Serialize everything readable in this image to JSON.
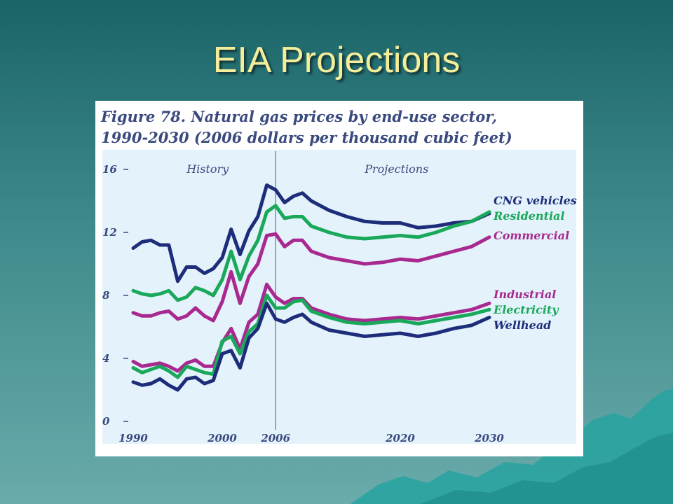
{
  "slide": {
    "title": "EIA Projections"
  },
  "colors": {
    "title_text": "#f4ee9a",
    "plot_background": "#e4f3fb",
    "chart_text": "#3b4a7e",
    "mountains": "#2aa3a0"
  },
  "chart_data": {
    "type": "line",
    "title_line1": "Figure 78. Natural gas prices by end-use sector,",
    "title_line2": "1990-2030 (2006 dollars per thousand cubic feet)",
    "xlabel": "",
    "ylabel": "",
    "xlim": [
      1990,
      2030
    ],
    "ylim": [
      0,
      16
    ],
    "x_ticks": [
      1990,
      2000,
      2006,
      2020,
      2030
    ],
    "y_ticks": [
      0,
      4,
      8,
      12,
      16
    ],
    "divider_year": 2006,
    "regions": {
      "history": "History",
      "projections": "Projections"
    },
    "grid": false,
    "legend_placement": "labels at right end of each line",
    "series": [
      {
        "name": "CNG vehicles",
        "color": "#1e2d7a",
        "points": [
          [
            1990,
            11.0
          ],
          [
            1991,
            11.4
          ],
          [
            1992,
            11.5
          ],
          [
            1993,
            11.2
          ],
          [
            1994,
            11.2
          ],
          [
            1995,
            8.9
          ],
          [
            1996,
            9.8
          ],
          [
            1997,
            9.8
          ],
          [
            1998,
            9.4
          ],
          [
            1999,
            9.7
          ],
          [
            2000,
            10.4
          ],
          [
            2001,
            12.2
          ],
          [
            2002,
            10.6
          ],
          [
            2003,
            12.1
          ],
          [
            2004,
            13.0
          ],
          [
            2005,
            15.0
          ],
          [
            2006,
            14.7
          ],
          [
            2007,
            13.9
          ],
          [
            2008,
            14.3
          ],
          [
            2009,
            14.5
          ],
          [
            2010,
            14.0
          ],
          [
            2012,
            13.4
          ],
          [
            2014,
            13.0
          ],
          [
            2016,
            12.7
          ],
          [
            2018,
            12.6
          ],
          [
            2020,
            12.6
          ],
          [
            2022,
            12.3
          ],
          [
            2024,
            12.4
          ],
          [
            2026,
            12.6
          ],
          [
            2028,
            12.7
          ],
          [
            2030,
            13.2
          ]
        ]
      },
      {
        "name": "Residential",
        "color": "#1aa85a",
        "points": [
          [
            1990,
            8.3
          ],
          [
            1991,
            8.1
          ],
          [
            1992,
            8.0
          ],
          [
            1993,
            8.1
          ],
          [
            1994,
            8.3
          ],
          [
            1995,
            7.7
          ],
          [
            1996,
            7.9
          ],
          [
            1997,
            8.5
          ],
          [
            1998,
            8.3
          ],
          [
            1999,
            8.0
          ],
          [
            2000,
            9.0
          ],
          [
            2001,
            10.8
          ],
          [
            2002,
            9.0
          ],
          [
            2003,
            10.5
          ],
          [
            2004,
            11.5
          ],
          [
            2005,
            13.3
          ],
          [
            2006,
            13.7
          ],
          [
            2007,
            12.9
          ],
          [
            2008,
            13.0
          ],
          [
            2009,
            13.0
          ],
          [
            2010,
            12.4
          ],
          [
            2012,
            12.0
          ],
          [
            2014,
            11.7
          ],
          [
            2016,
            11.6
          ],
          [
            2018,
            11.7
          ],
          [
            2020,
            11.8
          ],
          [
            2022,
            11.7
          ],
          [
            2024,
            12.0
          ],
          [
            2026,
            12.4
          ],
          [
            2028,
            12.7
          ],
          [
            2030,
            13.3
          ]
        ]
      },
      {
        "name": "Commercial",
        "color": "#a8298f",
        "points": [
          [
            1990,
            6.9
          ],
          [
            1991,
            6.7
          ],
          [
            1992,
            6.7
          ],
          [
            1993,
            6.9
          ],
          [
            1994,
            7.0
          ],
          [
            1995,
            6.5
          ],
          [
            1996,
            6.7
          ],
          [
            1997,
            7.2
          ],
          [
            1998,
            6.7
          ],
          [
            1999,
            6.4
          ],
          [
            2000,
            7.6
          ],
          [
            2001,
            9.5
          ],
          [
            2002,
            7.5
          ],
          [
            2003,
            9.2
          ],
          [
            2004,
            10.0
          ],
          [
            2005,
            11.8
          ],
          [
            2006,
            11.9
          ],
          [
            2007,
            11.1
          ],
          [
            2008,
            11.5
          ],
          [
            2009,
            11.5
          ],
          [
            2010,
            10.8
          ],
          [
            2012,
            10.4
          ],
          [
            2014,
            10.2
          ],
          [
            2016,
            10.0
          ],
          [
            2018,
            10.1
          ],
          [
            2020,
            10.3
          ],
          [
            2022,
            10.2
          ],
          [
            2024,
            10.5
          ],
          [
            2026,
            10.8
          ],
          [
            2028,
            11.1
          ],
          [
            2030,
            11.7
          ]
        ]
      },
      {
        "name": "Industrial",
        "color": "#a8298f",
        "points": [
          [
            1990,
            3.8
          ],
          [
            1991,
            3.5
          ],
          [
            1992,
            3.6
          ],
          [
            1993,
            3.7
          ],
          [
            1994,
            3.5
          ],
          [
            1995,
            3.2
          ],
          [
            1996,
            3.7
          ],
          [
            1997,
            3.9
          ],
          [
            1998,
            3.5
          ],
          [
            1999,
            3.5
          ],
          [
            2000,
            5.0
          ],
          [
            2001,
            5.9
          ],
          [
            2002,
            4.6
          ],
          [
            2003,
            6.3
          ],
          [
            2004,
            6.8
          ],
          [
            2005,
            8.7
          ],
          [
            2006,
            7.9
          ],
          [
            2007,
            7.5
          ],
          [
            2008,
            7.8
          ],
          [
            2009,
            7.8
          ],
          [
            2010,
            7.2
          ],
          [
            2012,
            6.8
          ],
          [
            2014,
            6.5
          ],
          [
            2016,
            6.4
          ],
          [
            2018,
            6.5
          ],
          [
            2020,
            6.6
          ],
          [
            2022,
            6.5
          ],
          [
            2024,
            6.7
          ],
          [
            2026,
            6.9
          ],
          [
            2028,
            7.1
          ],
          [
            2030,
            7.5
          ]
        ]
      },
      {
        "name": "Electricity",
        "color": "#1aa85a",
        "points": [
          [
            1990,
            3.4
          ],
          [
            1991,
            3.1
          ],
          [
            1992,
            3.3
          ],
          [
            1993,
            3.5
          ],
          [
            1994,
            3.2
          ],
          [
            1995,
            2.8
          ],
          [
            1996,
            3.5
          ],
          [
            1997,
            3.3
          ],
          [
            1998,
            3.1
          ],
          [
            1999,
            3.0
          ],
          [
            2000,
            5.1
          ],
          [
            2001,
            5.4
          ],
          [
            2002,
            4.3
          ],
          [
            2003,
            5.7
          ],
          [
            2004,
            6.2
          ],
          [
            2005,
            8.0
          ],
          [
            2006,
            7.2
          ],
          [
            2007,
            7.2
          ],
          [
            2008,
            7.6
          ],
          [
            2009,
            7.7
          ],
          [
            2010,
            7.0
          ],
          [
            2012,
            6.6
          ],
          [
            2014,
            6.3
          ],
          [
            2016,
            6.2
          ],
          [
            2018,
            6.3
          ],
          [
            2020,
            6.4
          ],
          [
            2022,
            6.2
          ],
          [
            2024,
            6.4
          ],
          [
            2026,
            6.6
          ],
          [
            2028,
            6.8
          ],
          [
            2030,
            7.1
          ]
        ]
      },
      {
        "name": "Wellhead",
        "color": "#1e2d7a",
        "points": [
          [
            1990,
            2.5
          ],
          [
            1991,
            2.3
          ],
          [
            1992,
            2.4
          ],
          [
            1993,
            2.7
          ],
          [
            1994,
            2.3
          ],
          [
            1995,
            2.0
          ],
          [
            1996,
            2.7
          ],
          [
            1997,
            2.8
          ],
          [
            1998,
            2.4
          ],
          [
            1999,
            2.6
          ],
          [
            2000,
            4.3
          ],
          [
            2001,
            4.5
          ],
          [
            2002,
            3.4
          ],
          [
            2003,
            5.3
          ],
          [
            2004,
            5.9
          ],
          [
            2005,
            7.5
          ],
          [
            2006,
            6.5
          ],
          [
            2007,
            6.3
          ],
          [
            2008,
            6.6
          ],
          [
            2009,
            6.8
          ],
          [
            2010,
            6.3
          ],
          [
            2012,
            5.8
          ],
          [
            2014,
            5.6
          ],
          [
            2016,
            5.4
          ],
          [
            2018,
            5.5
          ],
          [
            2020,
            5.6
          ],
          [
            2022,
            5.4
          ],
          [
            2024,
            5.6
          ],
          [
            2026,
            5.9
          ],
          [
            2028,
            6.1
          ],
          [
            2030,
            6.6
          ]
        ]
      }
    ]
  }
}
